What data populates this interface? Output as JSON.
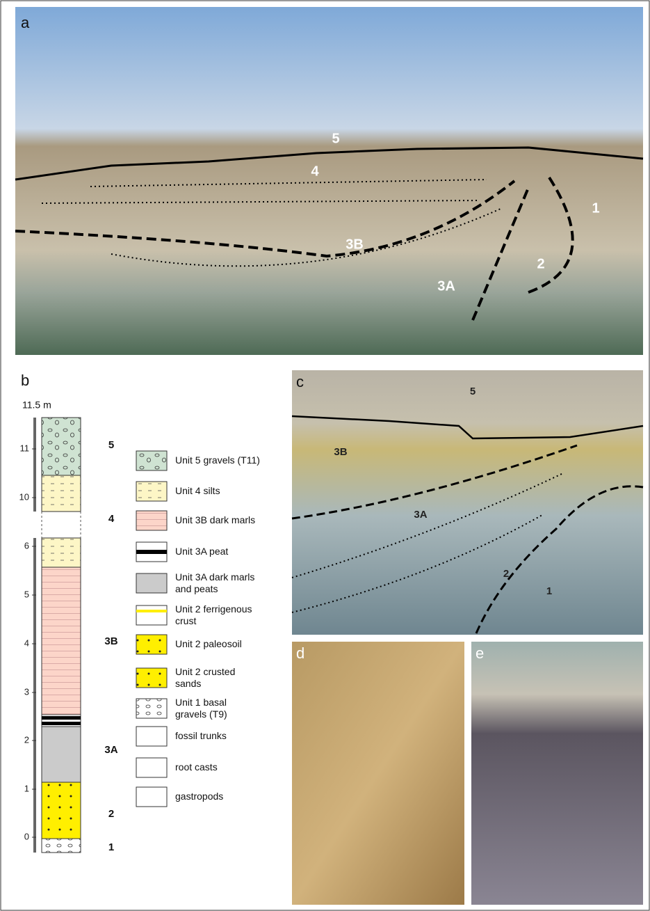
{
  "panel_a": {
    "label": "a",
    "annotations": [
      "5",
      "4",
      "3B",
      "1",
      "2",
      "3A"
    ]
  },
  "panel_b": {
    "label": "b",
    "height_label": "11.5 m",
    "scale_ticks": [
      "0",
      "1",
      "2",
      "3",
      "4",
      "5",
      "6",
      "10",
      "11"
    ],
    "unit_labels": [
      "5",
      "4",
      "3B",
      "3A",
      "2",
      "1"
    ],
    "legend": [
      "Unit 5 gravels (T11)",
      "Unit 4 silts",
      "Unit 3B dark marls",
      "Unit 3A peat",
      "Unit 3A dark marls and peats",
      "Unit 2 ferrigenous crust",
      "Unit 2 paleosoil",
      "Unit 2 crusted sands",
      "Unit 1 basal gravels (T9)",
      "fossil trunks",
      "root casts",
      "gastropods"
    ]
  },
  "panel_c": {
    "label": "c",
    "annotations": [
      "5",
      "3B",
      "3A",
      "2",
      "1"
    ]
  },
  "panel_d": {
    "label": "d"
  },
  "panel_e": {
    "label": "e"
  }
}
